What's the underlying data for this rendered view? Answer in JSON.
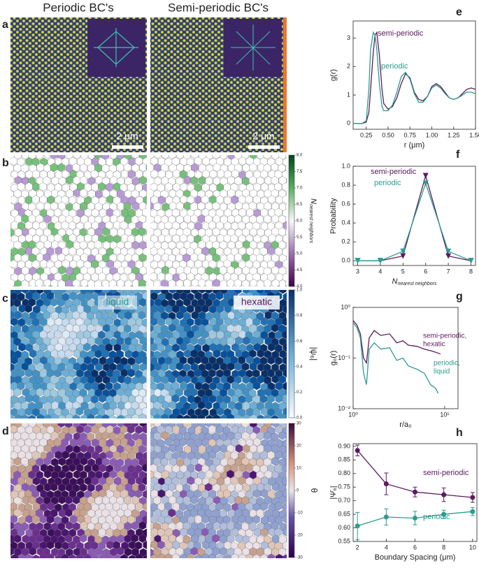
{
  "figure": {
    "column_titles": [
      "Periodic BC's",
      "Semi-periodic BC's"
    ],
    "panel_labels": [
      "a",
      "b",
      "c",
      "d",
      "e",
      "f",
      "g",
      "h"
    ],
    "scale_bars": [
      "2 μm",
      "2 μm"
    ],
    "phases": [
      "liquid",
      "hexatic"
    ],
    "colorbars": [
      {
        "label": {
          "main": "N",
          "sub": "nearest neighbors"
        },
        "lim": [
          4,
          8
        ],
        "ticks": [
          {
            "value": 4,
            "label": "4.0"
          },
          4.5,
          {
            "value": 5,
            "label": "5.0"
          },
          5.5,
          {
            "value": 6,
            "label": "6.0"
          },
          6.5,
          {
            "value": 7,
            "label": "7.0"
          },
          7.5,
          {
            "value": 8,
            "label": "8.0"
          }
        ]
      },
      {
        "label": "|ψ₆|",
        "lim": [
          0,
          1
        ],
        "ticks": [
          {
            "value": 0,
            "label": "0.0"
          },
          0.2,
          0.4,
          0.6,
          0.8,
          {
            "value": 1,
            "label": "1.0"
          }
        ]
      },
      {
        "label": "θ",
        "lim": [
          -30,
          30
        ],
        "ticks": [
          -30,
          -20,
          -10,
          0,
          10,
          20,
          30
        ]
      }
    ]
  },
  "chart_data": [
    {
      "type": "line",
      "ylabel": "g(r)",
      "xlabel": "r (μm)",
      "x": [
        0.12,
        0.2,
        0.25,
        0.28,
        0.3,
        0.33,
        0.35,
        0.37,
        0.4,
        0.43,
        0.45,
        0.5,
        0.55,
        0.6,
        0.65,
        0.7,
        0.75,
        0.8,
        0.85,
        0.9,
        0.95,
        1.0,
        1.05,
        1.1,
        1.15,
        1.2,
        1.25,
        1.3,
        1.35,
        1.4,
        1.45,
        1.5
      ],
      "series": [
        {
          "name": "semi-periodic",
          "color": "#5b1a5e",
          "values": [
            0,
            0,
            0.05,
            0.4,
            1.2,
            2.5,
            3.1,
            3.2,
            2.4,
            1.2,
            0.7,
            0.5,
            0.6,
            0.9,
            1.4,
            1.75,
            1.6,
            1.1,
            0.85,
            0.8,
            0.95,
            1.3,
            1.4,
            1.3,
            1.1,
            0.9,
            0.85,
            0.9,
            1.05,
            1.2,
            1.25,
            1.2
          ]
        },
        {
          "name": "periodic",
          "color": "#2a9d8f",
          "values": [
            0,
            0,
            0.1,
            1.2,
            2.6,
            3.2,
            3.1,
            2.6,
            1.4,
            0.6,
            0.45,
            0.45,
            0.65,
            1.1,
            1.65,
            1.8,
            1.55,
            1.05,
            0.75,
            0.75,
            0.95,
            1.25,
            1.35,
            1.25,
            1.05,
            0.9,
            0.85,
            0.9,
            1.0,
            1.1,
            1.1,
            1.05
          ]
        }
      ],
      "xlim": [
        0.1,
        1.5
      ],
      "xticks": [
        0.25,
        {
          "value": 0.5,
          "label": "0.50"
        },
        0.75,
        {
          "value": 1,
          "label": "1.00"
        },
        1.25,
        {
          "value": 1.5,
          "label": "1.50"
        }
      ],
      "ylim": [
        -0.2,
        3.6
      ],
      "yticks": [
        0,
        1,
        2,
        3
      ]
    },
    {
      "type": "line",
      "ylabel": "Probability",
      "xlabel": {
        "main": "N",
        "sub": "nearest neighbors"
      },
      "x": [
        3,
        4,
        5,
        6,
        7,
        8
      ],
      "series": [
        {
          "name": "semi-periodic",
          "color": "#5b1a5e",
          "marker": "v",
          "values": [
            0,
            0,
            0.05,
            0.9,
            0.05,
            0
          ]
        },
        {
          "name": "periodic",
          "color": "#2a9d8f",
          "marker": "v",
          "values": [
            0,
            0,
            0.1,
            0.82,
            0.1,
            0
          ]
        }
      ],
      "xlim": [
        2.8,
        8.2
      ],
      "xticks": [
        3,
        4,
        5,
        6,
        7,
        8
      ],
      "ylim": [
        -0.05,
        1.0
      ],
      "yticks": [
        {
          "value": 0,
          "label": "0.0"
        },
        0.2,
        0.4,
        0.6,
        0.8,
        {
          "value": 1,
          "label": "1.0"
        }
      ]
    },
    {
      "type": "line",
      "ylabel": "g₆(r)",
      "xlabel": "r/a₀",
      "xscale": "log",
      "yscale": "log",
      "series": [
        {
          "name": [
            "semi-periodic,",
            "hexatic"
          ],
          "color": "#5b1a5e",
          "x": [
            1,
            1.1,
            1.2,
            1.3,
            1.4,
            1.5,
            1.7,
            2,
            2.5,
            3,
            3.5,
            4,
            5,
            6,
            7,
            8,
            9
          ],
          "values": [
            0.55,
            0.45,
            0.3,
            0.1,
            0.08,
            0.25,
            0.35,
            0.28,
            0.3,
            0.2,
            0.22,
            0.18,
            0.17,
            0.15,
            0.14,
            0.13,
            0.12
          ]
        },
        {
          "name": [
            "periodic,",
            "liquid"
          ],
          "color": "#2a9d8f",
          "x": [
            1,
            1.1,
            1.2,
            1.3,
            1.4,
            1.5,
            1.7,
            2,
            2.5,
            3,
            3.5,
            4,
            5,
            6,
            7,
            8,
            8.5
          ],
          "values": [
            0.5,
            0.4,
            0.25,
            0.05,
            0.03,
            0.15,
            0.2,
            0.15,
            0.16,
            0.09,
            0.1,
            0.07,
            0.06,
            0.05,
            0.03,
            0.025,
            0.02
          ]
        }
      ],
      "xlim": [
        1,
        14
      ],
      "xticks": [
        {
          "value": 1,
          "label": "10⁰"
        },
        {
          "value": 10,
          "label": "10¹"
        }
      ],
      "ylim": [
        0.01,
        1
      ],
      "yticks": [
        {
          "value": 0.01,
          "label": "10⁻²"
        },
        {
          "value": 0.1,
          "label": "10⁻¹"
        },
        {
          "value": 1,
          "label": "10⁰"
        }
      ]
    },
    {
      "type": "line",
      "ylabel": "|Ψ̄₆|",
      "xlabel": "Boundary Spacing (μm)",
      "x": [
        2,
        4,
        6,
        8,
        10
      ],
      "series": [
        {
          "name": "semi-periodic",
          "color": "#5b1a5e",
          "marker": "o",
          "values": [
            0.885,
            0.762,
            0.732,
            0.722,
            0.712
          ],
          "errors": [
            0.02,
            0.04,
            0.018,
            0.025,
            0.018
          ]
        },
        {
          "name": "periodic",
          "color": "#2a9d8f",
          "marker": "o",
          "values": [
            0.607,
            0.64,
            0.636,
            0.65,
            0.66
          ],
          "errors": [
            0.05,
            0.03,
            0.025,
            0.015,
            0.015
          ]
        }
      ],
      "xlim": [
        1.7,
        10.3
      ],
      "xticks": [
        2,
        4,
        6,
        8,
        10
      ],
      "ylim": [
        0.55,
        0.91
      ],
      "yticks": [
        0.55,
        {
          "value": 0.6,
          "label": "0.60"
        },
        0.65,
        {
          "value": 0.7,
          "label": "0.70"
        },
        0.75,
        {
          "value": 0.8,
          "label": "0.80"
        },
        0.85,
        {
          "value": 0.9,
          "label": "0.90"
        }
      ]
    }
  ]
}
